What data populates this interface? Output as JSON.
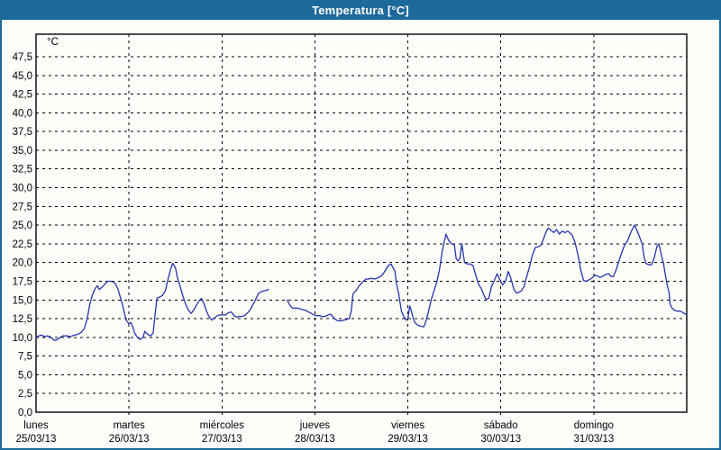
{
  "header": {
    "title": "Temperatura [°C]"
  },
  "colors": {
    "titlebar": "#1c699c",
    "window_border": "#1c699c",
    "background": "#fdfefa",
    "grid": "#000000",
    "axis_text": "#000000",
    "line": "#2434ae"
  },
  "chart_data": {
    "type": "line",
    "title": "Temperatura [°C]",
    "ylabel": "°C",
    "xlabel": "",
    "ylim": [
      0,
      50.5
    ],
    "y_tick_step": 2.5,
    "y_ticks": [
      "0,0",
      "2,5",
      "5,0",
      "7,5",
      "10,0",
      "12,5",
      "15,0",
      "17,5",
      "20,0",
      "22,5",
      "25,0",
      "27,5",
      "30,0",
      "32,5",
      "35,0",
      "37,5",
      "40,0",
      "42,5",
      "45,0",
      "47,5"
    ],
    "x_days": [
      {
        "name": "lunes",
        "date": "25/03/13"
      },
      {
        "name": "martes",
        "date": "26/03/13"
      },
      {
        "name": "miércoles",
        "date": "27/03/13"
      },
      {
        "name": "jueves",
        "date": "28/03/13"
      },
      {
        "name": "viernes",
        "date": "29/03/13"
      },
      {
        "name": "sábado",
        "date": "30/03/13"
      },
      {
        "name": "domingo",
        "date": "31/03/13"
      }
    ],
    "grid": "dashed",
    "legend": "none",
    "series": [
      {
        "name": "Temperatura",
        "color": "#2434ae",
        "segments": [
          [
            [
              0.0,
              10.0
            ],
            [
              0.03,
              10.2
            ],
            [
              0.06,
              10.3
            ],
            [
              0.09,
              10.1
            ],
            [
              0.12,
              10.2
            ],
            [
              0.15,
              10.1
            ],
            [
              0.17,
              9.9
            ],
            [
              0.2,
              9.6
            ],
            [
              0.23,
              9.7
            ],
            [
              0.26,
              10.0
            ],
            [
              0.29,
              10.2
            ],
            [
              0.33,
              10.2
            ],
            [
              0.37,
              10.1
            ],
            [
              0.41,
              10.3
            ],
            [
              0.45,
              10.4
            ],
            [
              0.49,
              10.7
            ],
            [
              0.52,
              11.2
            ],
            [
              0.55,
              12.5
            ],
            [
              0.58,
              14.5
            ],
            [
              0.61,
              15.8
            ],
            [
              0.64,
              16.6
            ],
            [
              0.66,
              16.9
            ],
            [
              0.68,
              16.4
            ],
            [
              0.71,
              16.7
            ],
            [
              0.74,
              17.1
            ],
            [
              0.77,
              17.5
            ],
            [
              0.8,
              17.5
            ],
            [
              0.83,
              17.4
            ],
            [
              0.85,
              17.2
            ],
            [
              0.88,
              16.5
            ],
            [
              0.91,
              15.2
            ],
            [
              0.94,
              13.8
            ],
            [
              0.97,
              12.3
            ],
            [
              1.0,
              11.8
            ],
            [
              1.02,
              12.0
            ],
            [
              1.04,
              11.4
            ],
            [
              1.06,
              10.6
            ],
            [
              1.09,
              10.0
            ],
            [
              1.12,
              9.7
            ],
            [
              1.15,
              10.0
            ],
            [
              1.17,
              10.8
            ],
            [
              1.2,
              10.4
            ],
            [
              1.23,
              10.2
            ],
            [
              1.26,
              10.6
            ],
            [
              1.28,
              13.0
            ],
            [
              1.3,
              15.2
            ],
            [
              1.33,
              15.4
            ],
            [
              1.36,
              15.6
            ],
            [
              1.39,
              16.2
            ],
            [
              1.42,
              17.8
            ],
            [
              1.45,
              19.2
            ],
            [
              1.47,
              19.9
            ],
            [
              1.5,
              19.3
            ],
            [
              1.52,
              18.0
            ],
            [
              1.55,
              16.8
            ],
            [
              1.58,
              15.5
            ],
            [
              1.61,
              14.4
            ],
            [
              1.64,
              13.6
            ],
            [
              1.67,
              13.2
            ],
            [
              1.7,
              13.7
            ],
            [
              1.73,
              14.4
            ],
            [
              1.76,
              15.0
            ],
            [
              1.78,
              15.2
            ],
            [
              1.81,
              14.4
            ],
            [
              1.83,
              13.6
            ],
            [
              1.86,
              12.8
            ],
            [
              1.89,
              12.3
            ],
            [
              1.92,
              12.6
            ],
            [
              1.95,
              12.9
            ],
            [
              1.98,
              13.0
            ],
            [
              2.01,
              13.0
            ],
            [
              2.04,
              13.0
            ],
            [
              2.07,
              13.3
            ],
            [
              2.1,
              13.4
            ],
            [
              2.13,
              12.9
            ],
            [
              2.16,
              12.7
            ],
            [
              2.18,
              12.8
            ],
            [
              2.21,
              12.8
            ],
            [
              2.24,
              12.9
            ],
            [
              2.27,
              13.2
            ],
            [
              2.3,
              13.6
            ],
            [
              2.33,
              14.3
            ],
            [
              2.36,
              15.0
            ],
            [
              2.39,
              15.8
            ],
            [
              2.42,
              16.1
            ],
            [
              2.45,
              16.2
            ],
            [
              2.48,
              16.3
            ],
            [
              2.5,
              16.4
            ]
          ],
          [
            [
              2.7,
              15.0
            ],
            [
              2.73,
              14.3
            ],
            [
              2.76,
              13.9
            ],
            [
              2.79,
              13.9
            ],
            [
              2.82,
              13.9
            ],
            [
              2.84,
              13.8
            ],
            [
              2.87,
              13.7
            ],
            [
              2.9,
              13.6
            ],
            [
              2.93,
              13.4
            ],
            [
              2.96,
              13.2
            ],
            [
              2.99,
              13.0
            ],
            [
              3.02,
              12.9
            ],
            [
              3.05,
              12.9
            ],
            [
              3.08,
              12.8
            ],
            [
              3.11,
              12.8
            ],
            [
              3.14,
              13.0
            ],
            [
              3.17,
              13.1
            ],
            [
              3.19,
              12.8
            ],
            [
              3.22,
              12.4
            ],
            [
              3.25,
              12.2
            ],
            [
              3.28,
              12.2
            ],
            [
              3.31,
              12.3
            ],
            [
              3.34,
              12.4
            ],
            [
              3.37,
              12.5
            ],
            [
              3.39,
              13.5
            ],
            [
              3.41,
              15.8
            ],
            [
              3.44,
              16.2
            ],
            [
              3.47,
              16.8
            ],
            [
              3.5,
              17.2
            ],
            [
              3.52,
              17.5
            ],
            [
              3.55,
              17.8
            ],
            [
              3.58,
              17.8
            ],
            [
              3.61,
              17.9
            ],
            [
              3.64,
              17.8
            ],
            [
              3.67,
              17.9
            ],
            [
              3.7,
              18.1
            ],
            [
              3.73,
              18.4
            ],
            [
              3.76,
              19.0
            ],
            [
              3.79,
              19.6
            ],
            [
              3.82,
              19.8
            ],
            [
              3.84,
              19.3
            ],
            [
              3.86,
              18.9
            ],
            [
              3.88,
              17.0
            ],
            [
              3.9,
              15.9
            ],
            [
              3.93,
              13.5
            ],
            [
              3.96,
              12.7
            ],
            [
              3.98,
              12.3
            ],
            [
              4.0,
              12.5
            ],
            [
              4.02,
              14.2
            ],
            [
              4.04,
              13.4
            ],
            [
              4.06,
              12.4
            ],
            [
              4.08,
              11.9
            ],
            [
              4.11,
              11.6
            ],
            [
              4.14,
              11.5
            ],
            [
              4.17,
              11.4
            ],
            [
              4.19,
              12.0
            ],
            [
              4.22,
              13.4
            ],
            [
              4.25,
              15.0
            ],
            [
              4.28,
              16.2
            ],
            [
              4.31,
              17.3
            ],
            [
              4.34,
              19.0
            ],
            [
              4.37,
              21.5
            ],
            [
              4.39,
              22.7
            ],
            [
              4.41,
              23.8
            ],
            [
              4.44,
              22.9
            ],
            [
              4.47,
              22.5
            ],
            [
              4.5,
              22.4
            ],
            [
              4.52,
              20.5
            ],
            [
              4.54,
              20.2
            ],
            [
              4.56,
              20.6
            ],
            [
              4.58,
              22.5
            ],
            [
              4.61,
              20.0
            ],
            [
              4.64,
              19.8
            ],
            [
              4.67,
              19.8
            ],
            [
              4.7,
              19.6
            ],
            [
              4.73,
              18.3
            ],
            [
              4.76,
              17.1
            ],
            [
              4.79,
              16.5
            ],
            [
              4.82,
              15.6
            ],
            [
              4.84,
              15.1
            ],
            [
              4.87,
              15.2
            ],
            [
              4.9,
              16.8
            ],
            [
              4.93,
              17.6
            ],
            [
              4.96,
              18.5
            ],
            [
              4.99,
              17.7
            ],
            [
              5.02,
              17.0
            ],
            [
              5.05,
              17.5
            ],
            [
              5.08,
              18.8
            ],
            [
              5.11,
              17.8
            ],
            [
              5.14,
              16.4
            ],
            [
              5.17,
              15.9
            ],
            [
              5.19,
              16.0
            ],
            [
              5.22,
              16.2
            ],
            [
              5.25,
              16.8
            ],
            [
              5.28,
              18.2
            ],
            [
              5.31,
              19.5
            ],
            [
              5.34,
              21.0
            ],
            [
              5.37,
              22.0
            ],
            [
              5.4,
              22.1
            ],
            [
              5.43,
              22.3
            ],
            [
              5.46,
              23.2
            ],
            [
              5.49,
              24.2
            ],
            [
              5.51,
              24.6
            ],
            [
              5.54,
              24.3
            ],
            [
              5.57,
              24.0
            ],
            [
              5.6,
              24.4
            ],
            [
              5.63,
              23.8
            ],
            [
              5.66,
              24.2
            ],
            [
              5.69,
              24.0
            ],
            [
              5.72,
              24.2
            ],
            [
              5.75,
              23.9
            ],
            [
              5.77,
              23.6
            ],
            [
              5.8,
              22.6
            ],
            [
              5.83,
              21.0
            ],
            [
              5.86,
              19.0
            ],
            [
              5.89,
              17.6
            ],
            [
              5.92,
              17.5
            ],
            [
              5.95,
              17.7
            ],
            [
              5.98,
              17.9
            ],
            [
              6.01,
              18.3
            ],
            [
              6.04,
              18.2
            ],
            [
              6.07,
              18.0
            ],
            [
              6.1,
              18.2
            ],
            [
              6.13,
              18.4
            ],
            [
              6.16,
              18.5
            ],
            [
              6.18,
              18.2
            ],
            [
              6.21,
              18.1
            ],
            [
              6.24,
              19.0
            ],
            [
              6.27,
              20.2
            ],
            [
              6.3,
              21.3
            ],
            [
              6.33,
              22.3
            ],
            [
              6.36,
              22.8
            ],
            [
              6.39,
              23.8
            ],
            [
              6.42,
              24.6
            ],
            [
              6.44,
              25.0
            ],
            [
              6.46,
              24.4
            ],
            [
              6.49,
              23.5
            ],
            [
              6.51,
              22.8
            ],
            [
              6.52,
              22.5
            ],
            [
              6.54,
              20.8
            ],
            [
              6.56,
              19.9
            ],
            [
              6.59,
              19.7
            ],
            [
              6.62,
              19.7
            ],
            [
              6.65,
              20.6
            ],
            [
              6.68,
              22.2
            ],
            [
              6.7,
              22.5
            ],
            [
              6.73,
              20.8
            ],
            [
              6.75,
              19.9
            ],
            [
              6.77,
              18.3
            ],
            [
              6.79,
              17.0
            ],
            [
              6.81,
              16.0
            ],
            [
              6.82,
              14.5
            ],
            [
              6.84,
              13.9
            ],
            [
              6.87,
              13.6
            ],
            [
              6.9,
              13.5
            ],
            [
              6.93,
              13.5
            ],
            [
              6.96,
              13.3
            ],
            [
              7.0,
              13.0
            ]
          ]
        ]
      }
    ]
  }
}
